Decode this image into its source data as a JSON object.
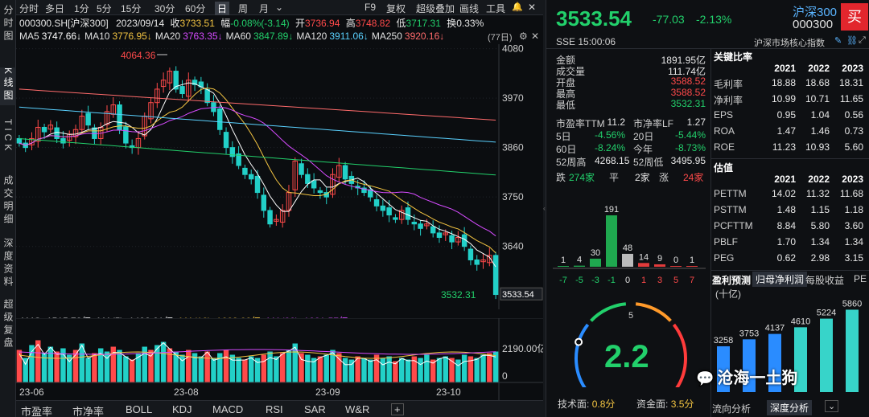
{
  "sidebar": {
    "tabs": [
      "分时图",
      "K线图",
      "TICK",
      "成交明细",
      "深度资料",
      "超级复盘"
    ]
  },
  "toolbar": {
    "items": [
      "分时",
      "多日",
      "1分",
      "5分",
      "15分",
      "30分",
      "60分",
      "日",
      "周",
      "月",
      "⌄"
    ],
    "selected": "日",
    "right_items": [
      "F9",
      "复权",
      "超级叠加",
      "画线",
      "工具"
    ]
  },
  "info": {
    "code": "000300.SH[沪深300]",
    "date": "2023/09/14",
    "close_label": "收",
    "close": "3733.51",
    "amp_label": "幅",
    "amp": "-0.08%(-3.14)",
    "open_label": "开",
    "open": "3736.94",
    "high_label": "高",
    "high": "3748.82",
    "low_label": "低",
    "low": "3717.31",
    "turn_label": "换",
    "turn": "0.33%"
  },
  "ma": [
    {
      "label": "MA5",
      "value": "3747.66↓",
      "color": "#ffffff"
    },
    {
      "label": "MA10",
      "value": "3776.95↓",
      "color": "#f4c542"
    },
    {
      "label": "MA20",
      "value": "3763.35↓",
      "color": "#d64bff"
    },
    {
      "label": "MA60",
      "value": "3847.89↓",
      "color": "#22d06b"
    },
    {
      "label": "MA120",
      "value": "3911.06↓",
      "color": "#5ad1ff"
    },
    {
      "label": "MA250",
      "value": "3920.16↓",
      "color": "#ff6b6b"
    }
  ],
  "period_tag": "(77日)",
  "price_axis": [
    "4080",
    "3970",
    "3860",
    "3750",
    "3640",
    "3533.54"
  ],
  "hi_note": "4064.36",
  "lo_note": "3532.31",
  "volume": {
    "amo": "AMO: 1515.78亿",
    "ma5": "MA(5): 1492.01亿",
    "ma10": "MA(10): 1668.02亿",
    "ma20": "MA(20): 1881.57亿",
    "axis": [
      "2190.00亿",
      "0"
    ]
  },
  "dates": [
    "23-06",
    "23-08",
    "23-09",
    "23-10"
  ],
  "bottom_tabs": [
    "市盈率",
    "市净率",
    "BOLL",
    "KDJ",
    "MACD",
    "RSI",
    "SAR",
    "W&R",
    "+"
  ],
  "quote": {
    "price": "3533.54",
    "change": "-77.03",
    "pct": "-2.13%",
    "name": "沪深300",
    "code": "000300",
    "buy": "买",
    "exchange": "SSE",
    "time": "15:00:06",
    "index_name": "沪深市场核心指数"
  },
  "stats": [
    [
      "金额",
      "1891.95亿"
    ],
    [
      "成交量",
      "111.74亿"
    ],
    [
      "开盘",
      "3588.52"
    ],
    [
      "最高",
      "3588.52"
    ],
    [
      "最低",
      "3532.31"
    ]
  ],
  "ratios": [
    [
      "市盈率TTM",
      "11.2",
      "市净率LF",
      "1.27"
    ],
    [
      "5日",
      "-4.56%",
      "20日",
      "-5.44%"
    ],
    [
      "60日",
      "-8.24%",
      "今年",
      "-8.73%"
    ],
    [
      "52周高",
      "4268.15",
      "52周低",
      "3495.95"
    ]
  ],
  "breadth": {
    "down_label": "跌",
    "down": "274家",
    "flat_label": "平",
    "flat": "2家",
    "up_label": "涨",
    "up": "24家"
  },
  "dist": {
    "counts": [
      "1",
      "4",
      "30",
      "191",
      "48",
      "14",
      "9",
      "0",
      "1"
    ],
    "ticks": [
      "-7",
      "-5",
      "-3",
      "-1",
      "0",
      "1",
      "3",
      "5",
      "7"
    ]
  },
  "gauge": {
    "value": "2.2",
    "min": "0",
    "mid": "5",
    "max": "10",
    "tech_label": "技术面:",
    "tech": "0.8分",
    "fund_label": "资金面:",
    "fund": "3.5分"
  },
  "key_ratios": {
    "title": "关键比率",
    "years": [
      "2021",
      "2022",
      "2023"
    ],
    "rows": [
      [
        "毛利率",
        "18.88",
        "18.68",
        "18.31"
      ],
      [
        "净利率",
        "10.99",
        "10.71",
        "11.65"
      ],
      [
        "EPS",
        "0.95",
        "1.04",
        "0.56"
      ],
      [
        "ROA",
        "1.47",
        "1.46",
        "0.73"
      ],
      [
        "ROE",
        "11.23",
        "10.93",
        "5.60"
      ]
    ]
  },
  "valuation": {
    "title": "估值",
    "years": [
      "2021",
      "2022",
      "2023"
    ],
    "rows": [
      [
        "PETTM",
        "14.02",
        "11.32",
        "11.68"
      ],
      [
        "PSTTM",
        "1.48",
        "1.15",
        "1.18"
      ],
      [
        "PCFTTM",
        "8.84",
        "5.80",
        "3.60"
      ],
      [
        "PBLF",
        "1.70",
        "1.34",
        "1.34"
      ],
      [
        "PEG",
        "0.62",
        "2.98",
        "3.15"
      ]
    ]
  },
  "forecast": {
    "tabs": [
      "盈利预测",
      "归母净利润",
      "每股收益",
      "PE"
    ],
    "unit": "(十亿)",
    "values": [
      "3258",
      "3753",
      "4137",
      "4610",
      "5224",
      "5860"
    ]
  },
  "watermark": "沧海一土狗",
  "right_bottom_tabs": [
    "流向分析",
    "深度分析"
  ],
  "colors": {
    "up": "#ff4a4a",
    "down": "#22d0c8",
    "bg": "#0b0d10"
  },
  "chart_data": {
    "type": "candlestick",
    "ma": [
      {
        "name": "MA5",
        "value": 3747.66
      },
      {
        "name": "MA10",
        "value": 3776.95
      },
      {
        "name": "MA20",
        "value": 3763.35
      },
      {
        "name": "MA60",
        "value": 3847.89
      },
      {
        "name": "MA120",
        "value": 3911.06
      },
      {
        "name": "MA250",
        "value": 3920.16
      }
    ],
    "ylim": [
      3533.54,
      4080
    ],
    "high": 4064.36,
    "low": 3532.31,
    "last": 3533.54
  }
}
